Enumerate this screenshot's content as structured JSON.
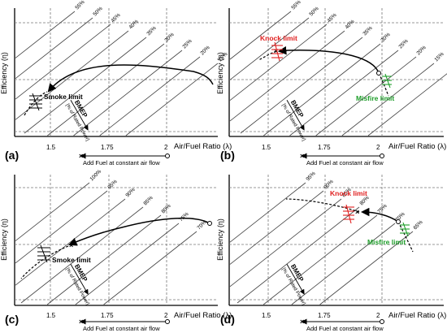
{
  "common": {
    "y_axis_label": "Efficiency (η)",
    "x_axis_label": "Air/Fuel Ratio (λ)",
    "x_ticks": [
      "1.5",
      "1.75",
      "2"
    ],
    "add_fuel_label": "Add Fuel at constant air flow",
    "bmep_label": "BMEP",
    "bmep_sub": "[% of Rated Power]"
  },
  "panels": [
    {
      "id": "a",
      "tag": "(a)",
      "bmep_lines": [
        "55%",
        "50%",
        "45%",
        "40%",
        "35%",
        "30%",
        "25%",
        "20%",
        "15%"
      ],
      "limits": [
        {
          "label": "Smoke limit",
          "color": "#000000"
        }
      ]
    },
    {
      "id": "b",
      "tag": "(b)",
      "bmep_lines": [
        "55%",
        "50%",
        "45%",
        "40%",
        "35%",
        "30%",
        "25%",
        "20%",
        "15%",
        "10%"
      ],
      "limits": [
        {
          "label": "Knock limit",
          "color": "#e02020"
        },
        {
          "label": "Misfire limit",
          "color": "#1e9e2a"
        }
      ]
    },
    {
      "id": "c",
      "tag": "(c)",
      "bmep_lines": [
        "100%",
        "95%",
        "90%",
        "85%",
        "80%",
        "75%",
        "70%"
      ],
      "limits": [
        {
          "label": "Smoke limit",
          "color": "#000000"
        }
      ]
    },
    {
      "id": "d",
      "tag": "(d)",
      "bmep_lines": [
        "95%",
        "90%",
        "85%",
        "80%",
        "75%",
        "70%",
        "65%"
      ],
      "limits": [
        {
          "label": "Knock limit",
          "color": "#e02020"
        },
        {
          "label": "Misfire limit",
          "color": "#1e9e2a"
        }
      ]
    }
  ]
}
